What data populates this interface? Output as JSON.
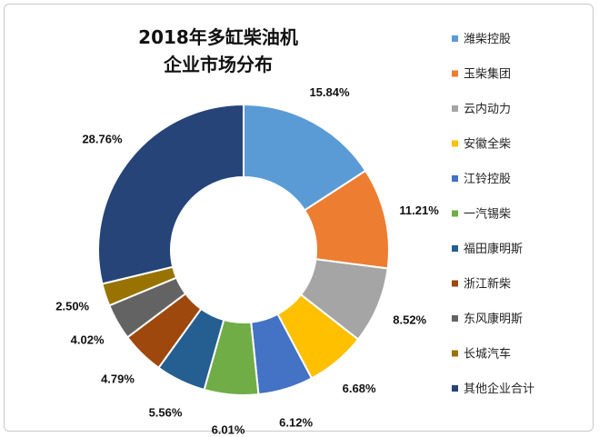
{
  "chart_data": {
    "type": "pie",
    "variant": "donut",
    "title_lines": [
      "2018年多缸柴油机",
      "企业市场分布"
    ],
    "categories": [
      "潍柴控股",
      "玉柴集团",
      "云内动力",
      "安徽全柴",
      "江铃控股",
      "一汽锡柴",
      "福田康明斯",
      "浙江新柴",
      "东风康明斯",
      "长城汽车",
      "其他企业合计"
    ],
    "values": [
      15.84,
      11.21,
      8.52,
      6.68,
      6.12,
      6.01,
      5.56,
      4.79,
      4.02,
      2.5,
      28.76
    ],
    "labels": [
      "15.84%",
      "11.21%",
      "8.52%",
      "6.68%",
      "6.12%",
      "6.01%",
      "5.56%",
      "4.79%",
      "4.02%",
      "2.50%",
      "28.76%"
    ],
    "colors": [
      "#5B9BD5",
      "#ED7D31",
      "#A5A5A5",
      "#FFC000",
      "#4472C4",
      "#70AD47",
      "#255E91",
      "#9E480E",
      "#636363",
      "#997300",
      "#264478"
    ],
    "legend_position": "right"
  }
}
